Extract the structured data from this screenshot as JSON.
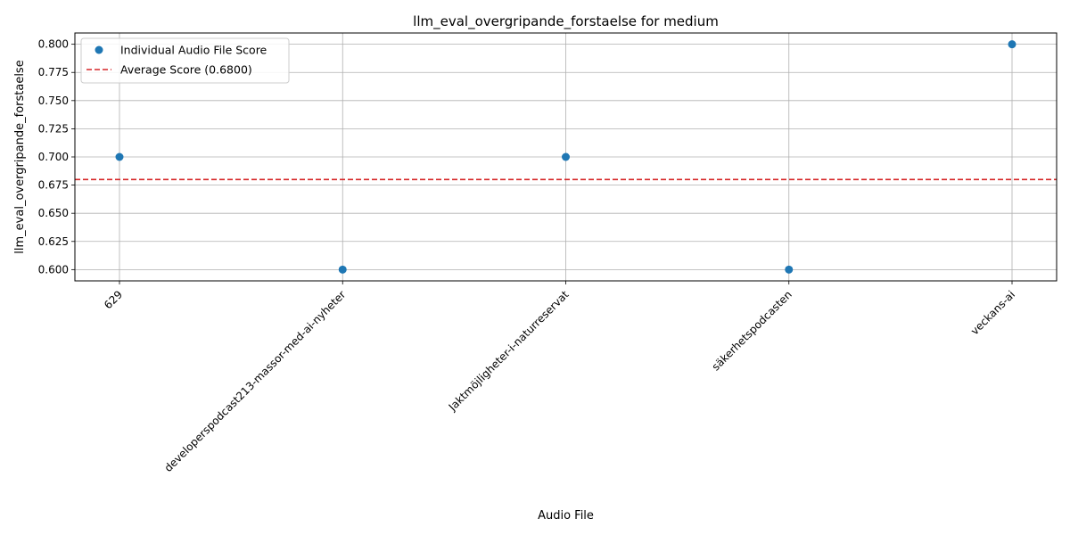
{
  "chart_data": {
    "type": "scatter",
    "title": "llm_eval_overgripande_forstaelse for medium",
    "xlabel": "Audio File",
    "ylabel": "llm_eval_overgripande_forstaelse",
    "categories": [
      "629",
      "developerspodcast213-massor-med-ai-nyheter",
      "Jaktmöjligheter-i-naturreservat",
      "säkerhetspodcasten",
      "veckans-ai"
    ],
    "series": [
      {
        "name": "Individual Audio File Score",
        "values": [
          0.7,
          0.6,
          0.7,
          0.6,
          0.8
        ],
        "color": "#1f77b4"
      }
    ],
    "average": {
      "label": "Average Score (0.6800)",
      "value": 0.68,
      "color": "#d62728"
    },
    "yticks": [
      "0.600",
      "0.625",
      "0.650",
      "0.675",
      "0.700",
      "0.725",
      "0.750",
      "0.775",
      "0.800"
    ],
    "ylim": [
      0.59,
      0.81
    ],
    "grid": true,
    "legend_position": "top-left"
  }
}
